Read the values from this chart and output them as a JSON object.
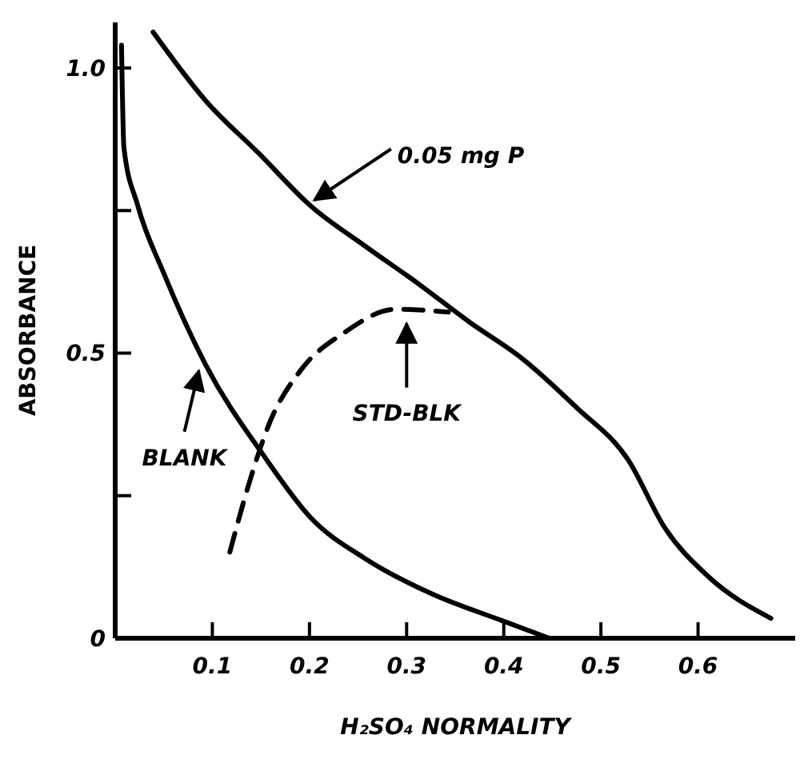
{
  "chart_data": {
    "type": "line",
    "xlabel": "H₂SO₄ NORMALITY",
    "ylabel": "ABSORBANCE",
    "xlim": [
      0,
      0.7
    ],
    "ylim": [
      0,
      1.08
    ],
    "xticks": [
      0.1,
      0.2,
      0.3,
      0.4,
      0.5,
      0.6
    ],
    "yticks": [
      0,
      {
        "value": 0.25,
        "label": null
      },
      0.5,
      {
        "value": 0.75,
        "label": null
      },
      {
        "value": 1,
        "label": "1.0"
      }
    ],
    "grid": false,
    "series": [
      {
        "color": "#000000",
        "line_style": "solid",
        "x": [
          0.0065,
          0.009,
          0.023,
          0.05,
          0.093,
          0.153,
          0.202,
          0.257,
          0.327,
          0.398,
          0.447
        ],
        "values": [
          1.04,
          0.86,
          0.76,
          0.64,
          0.48,
          0.32,
          0.21,
          0.14,
          0.077,
          0.031,
          0
        ]
      },
      {
        "color": "#000000",
        "line_style": "solid",
        "x": [
          0.039,
          0.093,
          0.148,
          0.202,
          0.257,
          0.311,
          0.365,
          0.42,
          0.474,
          0.528,
          0.566,
          0.61,
          0.675
        ],
        "values": [
          1.063,
          0.943,
          0.85,
          0.757,
          0.688,
          0.623,
          0.554,
          0.489,
          0.406,
          0.313,
          0.193,
          0.109,
          0.035
        ]
      },
      {
        "color": "#000000",
        "line_style": "dashed",
        "x": [
          0.118,
          0.137,
          0.159,
          0.191,
          0.235,
          0.289,
          0.343
        ],
        "values": [
          0.151,
          0.267,
          0.378,
          0.47,
          0.535,
          0.577,
          0.572
        ]
      }
    ],
    "annotations": [
      {
        "text": "0.05 mg P",
        "x": 0.2,
        "y": 0.757
      },
      {
        "text": "BLANK",
        "x": 0.091,
        "y": 0.48
      },
      {
        "text": "STD-BLK",
        "x": 0.3,
        "y": 0.563
      }
    ]
  }
}
